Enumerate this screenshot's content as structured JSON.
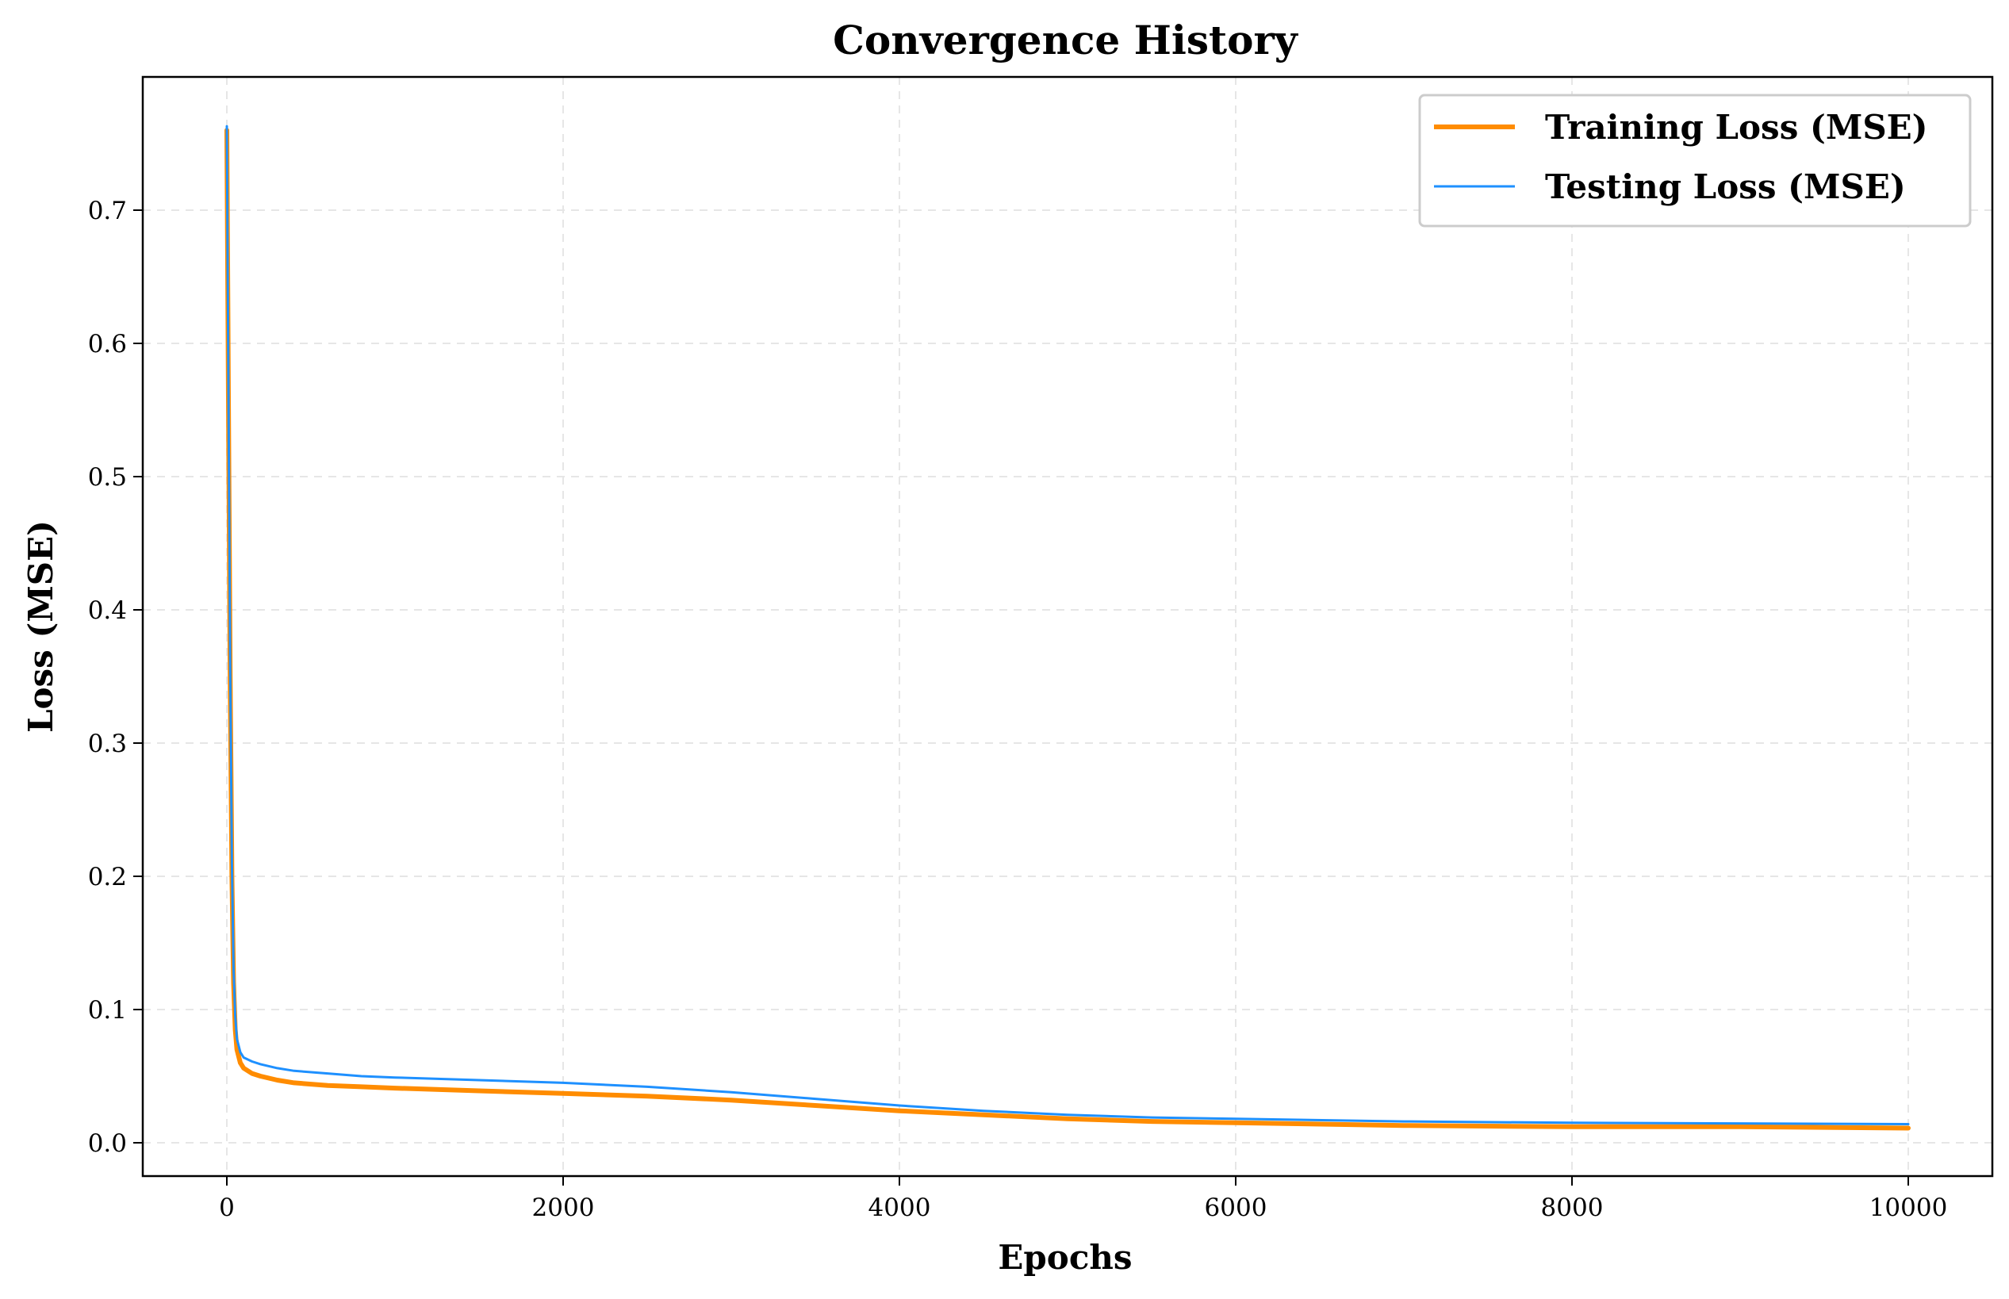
{
  "chart_data": {
    "type": "line",
    "title": "Convergence History",
    "xlabel": "Epochs",
    "ylabel": "Loss (MSE)",
    "xlim": [
      -500,
      10500
    ],
    "ylim": [
      -0.025,
      0.8
    ],
    "xticks": [
      0,
      2000,
      4000,
      6000,
      8000,
      10000
    ],
    "yticks": [
      0.0,
      0.1,
      0.2,
      0.3,
      0.4,
      0.5,
      0.6,
      0.7
    ],
    "xtick_labels": [
      "0",
      "2000",
      "4000",
      "6000",
      "8000",
      "10000"
    ],
    "ytick_labels": [
      "0.0",
      "0.1",
      "0.2",
      "0.3",
      "0.4",
      "0.5",
      "0.6",
      "0.7"
    ],
    "grid": true,
    "legend_position": "top-right",
    "series": [
      {
        "name": "Training Loss (MSE)",
        "color": "#ff8c00",
        "x": [
          0,
          10,
          20,
          30,
          40,
          50,
          60,
          80,
          100,
          150,
          200,
          300,
          400,
          600,
          800,
          1000,
          1500,
          2000,
          2500,
          3000,
          3500,
          4000,
          4500,
          5000,
          5500,
          6000,
          7000,
          8000,
          9000,
          10000
        ],
        "y": [
          0.76,
          0.55,
          0.35,
          0.2,
          0.12,
          0.085,
          0.07,
          0.06,
          0.056,
          0.052,
          0.05,
          0.047,
          0.045,
          0.043,
          0.042,
          0.041,
          0.039,
          0.037,
          0.035,
          0.032,
          0.028,
          0.024,
          0.021,
          0.018,
          0.016,
          0.015,
          0.013,
          0.012,
          0.012,
          0.011
        ]
      },
      {
        "name": "Testing Loss (MSE)",
        "color": "#1e90ff",
        "x": [
          0,
          10,
          20,
          30,
          40,
          50,
          60,
          80,
          100,
          150,
          200,
          300,
          400,
          600,
          800,
          1000,
          1500,
          2000,
          2500,
          3000,
          3500,
          4000,
          4500,
          5000,
          5500,
          6000,
          7000,
          8000,
          9000,
          10000
        ],
        "y": [
          0.763,
          0.56,
          0.36,
          0.21,
          0.13,
          0.095,
          0.078,
          0.068,
          0.064,
          0.061,
          0.059,
          0.056,
          0.054,
          0.052,
          0.05,
          0.049,
          0.047,
          0.045,
          0.042,
          0.038,
          0.033,
          0.028,
          0.024,
          0.021,
          0.019,
          0.018,
          0.016,
          0.015,
          0.0145,
          0.014
        ]
      }
    ]
  }
}
